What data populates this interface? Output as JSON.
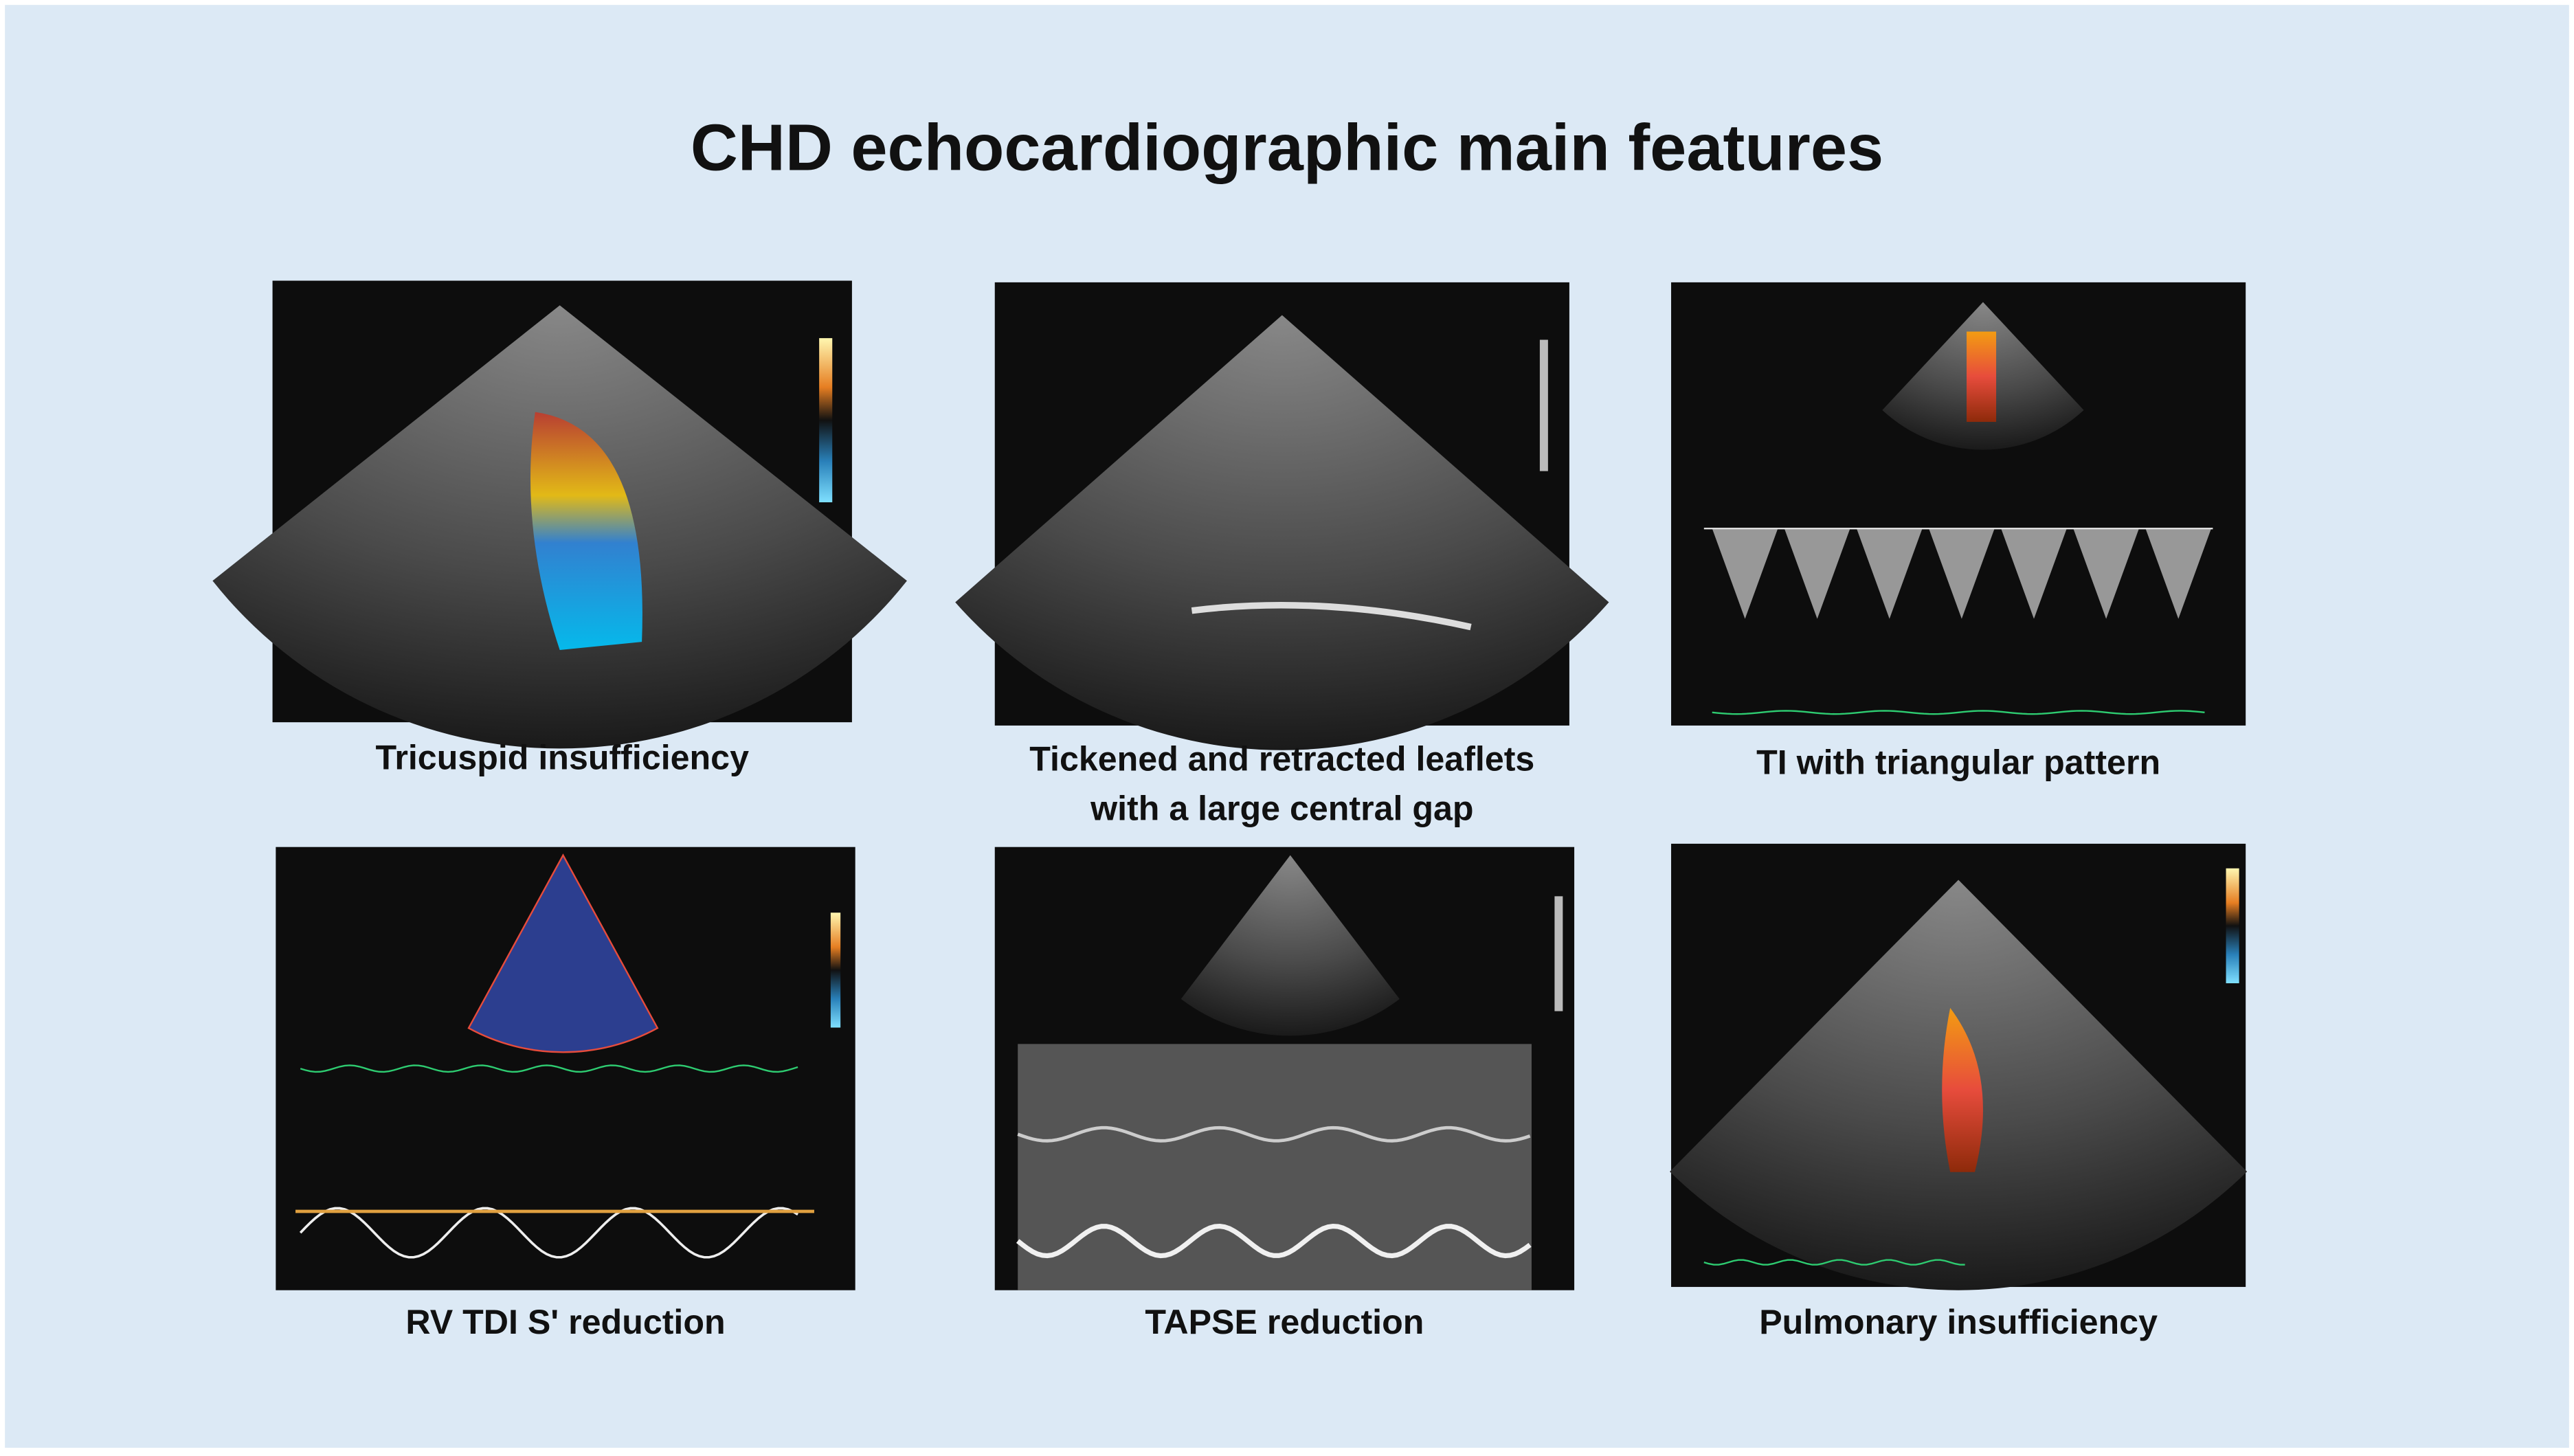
{
  "title": "CHD echocardiographic main features",
  "panels": [
    {
      "caption": [
        "Tricuspid insufficiency"
      ]
    },
    {
      "caption": [
        "Tickened and retracted leaflets",
        "with a large central gap"
      ]
    },
    {
      "caption": [
        "TI with triangular pattern"
      ]
    },
    {
      "caption": [
        "RV TDI S' reduction"
      ]
    },
    {
      "caption": [
        "TAPSE reduction"
      ]
    },
    {
      "caption": [
        "Pulmonary insufficiency"
      ]
    }
  ]
}
